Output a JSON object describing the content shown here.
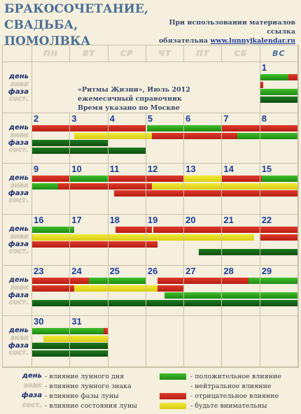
{
  "title": "Бракосочетание, свадьба, помолвка",
  "note": {
    "line1": "При использовании материалов ссылка",
    "line2_prefix": "обязательна ",
    "link": "www.lunnyjkalendar.ru"
  },
  "info": {
    "line1": "«Ритмы Жизни», Июль 2012",
    "line2": "ежемесячный справочник",
    "line3": "Время указано по Москве"
  },
  "weekdays": [
    "ПН",
    "ВТ",
    "СР",
    "ЧТ",
    "ПТ",
    "СБ",
    "ВС"
  ],
  "row_labels": [
    "день",
    "знак",
    "фаза",
    "сост."
  ],
  "legend": {
    "left": [
      {
        "word": "день",
        "desc": "- влияние лунного дня"
      },
      {
        "word": "знак",
        "desc": "- влияние лунного знака"
      },
      {
        "word": "фаза",
        "desc": "- влияние фазы луны"
      },
      {
        "word": "сост.",
        "desc": "- влияние состояния луны"
      }
    ],
    "right": [
      {
        "color": "g",
        "desc": "- положительное влияние"
      },
      {
        "color": "n",
        "desc": "- нейтральное влияние"
      },
      {
        "color": "r",
        "desc": "- отрицательное влияние"
      },
      {
        "color": "y",
        "desc": "- будьте внимательны"
      }
    ]
  },
  "days": [
    {
      "d": 1,
      "bars": [
        [
          [
            "g",
            75
          ],
          [
            "r",
            25
          ]
        ],
        [
          [
            "r",
            8
          ]
        ],
        [
          [
            "g",
            100
          ]
        ],
        [
          [
            "dg",
            100
          ]
        ]
      ]
    },
    {
      "d": 2,
      "bars": [
        [
          [
            "r",
            100
          ]
        ],
        [
          [
            "n",
            100
          ]
        ],
        [
          [
            "dg",
            100
          ]
        ],
        [
          [
            "dg",
            100
          ]
        ]
      ]
    },
    {
      "d": 3,
      "bars": [
        [
          [
            "r",
            100
          ]
        ],
        [
          [
            "n",
            10
          ],
          [
            "y",
            90
          ]
        ],
        [
          [
            "dg",
            100
          ]
        ],
        [
          [
            "dg",
            100
          ]
        ]
      ]
    },
    {
      "d": 4,
      "bars": [
        [
          [
            "r",
            100
          ]
        ],
        [
          [
            "y",
            100
          ]
        ],
        [
          [
            "n",
            100
          ]
        ],
        [
          [
            "dg",
            100
          ]
        ]
      ]
    },
    {
      "d": 5,
      "bars": [
        [
          [
            "n",
            2
          ],
          [
            "g",
            98
          ]
        ],
        [
          [
            "y",
            15
          ],
          [
            "r",
            85
          ]
        ],
        [
          [
            "n",
            100
          ]
        ],
        [
          [
            "n",
            100
          ]
        ]
      ]
    },
    {
      "d": 6,
      "bars": [
        [
          [
            "g",
            100
          ]
        ],
        [
          [
            "r",
            100
          ]
        ],
        [
          [
            "n",
            100
          ]
        ],
        [
          [
            "n",
            100
          ]
        ]
      ]
    },
    {
      "d": 7,
      "bars": [
        [
          [
            "r",
            100
          ]
        ],
        [
          [
            "r",
            40
          ],
          [
            "g",
            60
          ]
        ],
        [
          [
            "n",
            100
          ]
        ],
        [
          [
            "n",
            100
          ]
        ]
      ]
    },
    {
      "d": 8,
      "bars": [
        [
          [
            "r",
            100
          ]
        ],
        [
          [
            "g",
            100
          ]
        ],
        [
          [
            "n",
            100
          ]
        ],
        [
          [
            "n",
            100
          ]
        ]
      ]
    },
    {
      "d": 9,
      "bars": [
        [
          [
            "r",
            100
          ]
        ],
        [
          [
            "g",
            70
          ],
          [
            "r",
            30
          ]
        ],
        [
          [
            "n",
            100
          ]
        ],
        [
          [
            "n",
            100
          ]
        ]
      ]
    },
    {
      "d": 10,
      "bars": [
        [
          [
            "g",
            100
          ]
        ],
        [
          [
            "r",
            100
          ]
        ],
        [
          [
            "n",
            100
          ]
        ],
        [
          [
            "n",
            100
          ]
        ]
      ]
    },
    {
      "d": 11,
      "bars": [
        [
          [
            "r",
            100
          ]
        ],
        [
          [
            "r",
            100
          ]
        ],
        [
          [
            "n",
            15
          ],
          [
            "r",
            85
          ]
        ],
        [
          [
            "n",
            100
          ]
        ]
      ]
    },
    {
      "d": 12,
      "bars": [
        [
          [
            "r",
            100
          ]
        ],
        [
          [
            "r",
            15
          ],
          [
            "y",
            85
          ]
        ],
        [
          [
            "r",
            100
          ]
        ],
        [
          [
            "n",
            100
          ]
        ]
      ]
    },
    {
      "d": 13,
      "bars": [
        [
          [
            "y",
            100
          ]
        ],
        [
          [
            "y",
            100
          ]
        ],
        [
          [
            "r",
            100
          ]
        ],
        [
          [
            "n",
            100
          ]
        ]
      ]
    },
    {
      "d": 14,
      "bars": [
        [
          [
            "r",
            100
          ]
        ],
        [
          [
            "y",
            100
          ]
        ],
        [
          [
            "r",
            100
          ]
        ],
        [
          [
            "n",
            100
          ]
        ]
      ]
    },
    {
      "d": 15,
      "bars": [
        [
          [
            "r",
            5
          ],
          [
            "g",
            95
          ]
        ],
        [
          [
            "y",
            100
          ]
        ],
        [
          [
            "r",
            100
          ]
        ],
        [
          [
            "n",
            100
          ]
        ]
      ]
    },
    {
      "d": 16,
      "bars": [
        [
          [
            "g",
            100
          ]
        ],
        [
          [
            "y",
            100
          ]
        ],
        [
          [
            "r",
            100
          ]
        ],
        [
          [
            "n",
            100
          ]
        ]
      ]
    },
    {
      "d": 17,
      "bars": [
        [
          [
            "g",
            10
          ],
          [
            "n",
            90
          ]
        ],
        [
          [
            "y",
            100
          ]
        ],
        [
          [
            "r",
            100
          ]
        ],
        [
          [
            "n",
            100
          ]
        ]
      ]
    },
    {
      "d": 18,
      "bars": [
        [
          [
            "n",
            20
          ],
          [
            "r",
            80
          ]
        ],
        [
          [
            "y",
            100
          ]
        ],
        [
          [
            "r",
            100
          ]
        ],
        [
          [
            "n",
            100
          ]
        ]
      ]
    },
    {
      "d": 19,
      "bars": [
        [
          [
            "r",
            15
          ],
          [
            "n",
            5
          ],
          [
            "r",
            80
          ]
        ],
        [
          [
            "y",
            100
          ]
        ],
        [
          [
            "r",
            30
          ],
          [
            "n",
            70
          ]
        ],
        [
          [
            "n",
            100
          ]
        ]
      ]
    },
    {
      "d": 20,
      "bars": [
        [
          [
            "r",
            100
          ]
        ],
        [
          [
            "y",
            100
          ]
        ],
        [
          [
            "n",
            100
          ]
        ],
        [
          [
            "n",
            40
          ],
          [
            "dg",
            60
          ]
        ]
      ]
    },
    {
      "d": 21,
      "bars": [
        [
          [
            "r",
            100
          ]
        ],
        [
          [
            "y",
            85
          ],
          [
            "n",
            15
          ]
        ],
        [
          [
            "n",
            100
          ]
        ],
        [
          [
            "dg",
            100
          ]
        ]
      ]
    },
    {
      "d": 22,
      "bars": [
        [
          [
            "r",
            100
          ]
        ],
        [
          [
            "r",
            100
          ]
        ],
        [
          [
            "n",
            100
          ]
        ],
        [
          [
            "dg",
            100
          ]
        ]
      ]
    },
    {
      "d": 23,
      "bars": [
        [
          [
            "r",
            100
          ]
        ],
        [
          [
            "r",
            100
          ]
        ],
        [
          [
            "n",
            100
          ]
        ],
        [
          [
            "dg",
            100
          ]
        ]
      ]
    },
    {
      "d": 24,
      "bars": [
        [
          [
            "r",
            50
          ],
          [
            "g",
            50
          ]
        ],
        [
          [
            "r",
            10
          ],
          [
            "y",
            90
          ]
        ],
        [
          [
            "n",
            100
          ]
        ],
        [
          [
            "dg",
            100
          ]
        ]
      ]
    },
    {
      "d": 25,
      "bars": [
        [
          [
            "g",
            100
          ]
        ],
        [
          [
            "y",
            100
          ]
        ],
        [
          [
            "n",
            100
          ]
        ],
        [
          [
            "dg",
            100
          ]
        ]
      ]
    },
    {
      "d": 26,
      "bars": [
        [
          [
            "n",
            30
          ],
          [
            "r",
            70
          ]
        ],
        [
          [
            "y",
            30
          ],
          [
            "r",
            70
          ]
        ],
        [
          [
            "n",
            50
          ],
          [
            "g",
            50
          ]
        ],
        [
          [
            "dg",
            100
          ]
        ]
      ]
    },
    {
      "d": 27,
      "bars": [
        [
          [
            "r",
            100
          ]
        ],
        [
          [
            "n",
            100
          ]
        ],
        [
          [
            "g",
            100
          ]
        ],
        [
          [
            "dg",
            100
          ]
        ]
      ]
    },
    {
      "d": 28,
      "bars": [
        [
          [
            "r",
            70
          ],
          [
            "g",
            30
          ]
        ],
        [
          [
            "n",
            100
          ]
        ],
        [
          [
            "g",
            100
          ]
        ],
        [
          [
            "dg",
            100
          ]
        ]
      ]
    },
    {
      "d": 29,
      "bars": [
        [
          [
            "g",
            100
          ]
        ],
        [
          [
            "n",
            100
          ]
        ],
        [
          [
            "g",
            100
          ]
        ],
        [
          [
            "dg",
            100
          ]
        ]
      ]
    },
    {
      "d": 30,
      "bars": [
        [
          [
            "g",
            100
          ]
        ],
        [
          [
            "n",
            30
          ],
          [
            "y",
            70
          ]
        ],
        [
          [
            "dg",
            100
          ]
        ],
        [
          [
            "dg",
            100
          ]
        ]
      ]
    },
    {
      "d": 31,
      "bars": [
        [
          [
            "g",
            90
          ],
          [
            "r",
            10
          ]
        ],
        [
          [
            "y",
            100
          ]
        ],
        [
          [
            "dg",
            100
          ]
        ],
        [
          [
            "dg",
            100
          ]
        ]
      ]
    }
  ]
}
